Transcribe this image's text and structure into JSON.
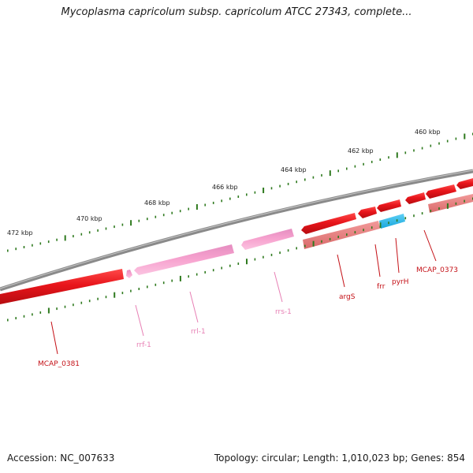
{
  "title": "Mycoplasma capricolum subsp. capricolum ATCC 27343, complete...",
  "footer": {
    "accession": "Accession: NC_007633",
    "summary": "Topology: circular; Length: 1,010,023 bp; Genes: 854"
  },
  "colors": {
    "backbone": "#8a8a8a",
    "cds": "#e8151b",
    "cds_light": "#ee7a7a",
    "rna": "#f7a3cf",
    "rna_label": "#e77fb4",
    "pyr": "#27b7ea",
    "tick": "#2f7a1f",
    "gene_label": "#c41016"
  },
  "ruler": {
    "labels": [
      "472 kbp",
      "470 kbp",
      "468 kbp",
      "466 kbp",
      "464 kbp",
      "462 kbp",
      "460 kbp"
    ]
  },
  "genes": [
    {
      "name": "MCAP_0381",
      "type": "cds"
    },
    {
      "name": "rrf-1",
      "type": "rna"
    },
    {
      "name": "rrl-1",
      "type": "rna"
    },
    {
      "name": "rrs-1",
      "type": "rna"
    },
    {
      "name": "argS",
      "type": "cds"
    },
    {
      "name": "frr",
      "type": "cds"
    },
    {
      "name": "pyrH",
      "type": "cds"
    },
    {
      "name": "MCAP_0373",
      "type": "cds"
    }
  ]
}
